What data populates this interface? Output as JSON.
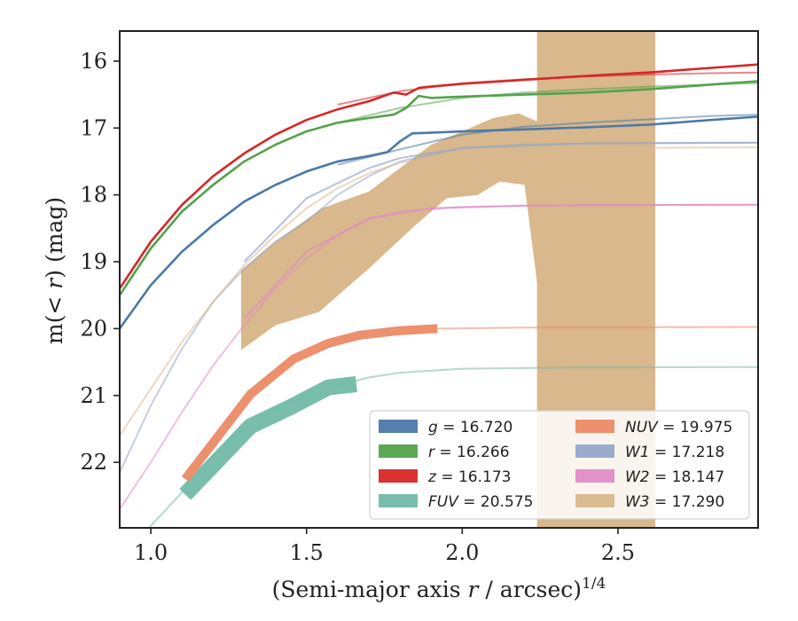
{
  "chart_data": {
    "type": "line",
    "xlabel_main": "(Semi-major axis ",
    "xlabel_var": "r",
    "xlabel_tail": " / arcsec)",
    "xlabel_sup": "1/4",
    "ylabel_main": "m(< ",
    "ylabel_var": "r",
    "ylabel_tail": ") (mag)",
    "xlim": [
      0.9,
      2.95
    ],
    "ylim": [
      22.98,
      15.55
    ],
    "xticks": [
      {
        "v": 1.0,
        "label": "1.0"
      },
      {
        "v": 1.5,
        "label": "1.5"
      },
      {
        "v": 2.0,
        "label": "2.0"
      },
      {
        "v": 2.5,
        "label": "2.5"
      }
    ],
    "yticks": [
      {
        "v": 16,
        "label": "16"
      },
      {
        "v": 17,
        "label": "17"
      },
      {
        "v": 18,
        "label": "18"
      },
      {
        "v": 19,
        "label": "19"
      },
      {
        "v": 20,
        "label": "20"
      },
      {
        "v": 21,
        "label": "21"
      },
      {
        "v": 22,
        "label": "22"
      }
    ],
    "colors": {
      "g": "#4c78a8",
      "r": "#54a24b",
      "z": "#d62728",
      "FUV": "#72bba8",
      "NUV": "#eb8a66",
      "W1": "#97a6c8",
      "W2": "#e08cc5",
      "W3": "#d8b88c"
    },
    "series": [
      {
        "name": "g",
        "legend_var": "g",
        "legend_val": "16.720",
        "color": "#4c78a8",
        "data": [
          [
            0.9,
            20.0
          ],
          [
            1.0,
            19.35
          ],
          [
            1.1,
            18.85
          ],
          [
            1.2,
            18.45
          ],
          [
            1.3,
            18.1
          ],
          [
            1.4,
            17.85
          ],
          [
            1.5,
            17.65
          ],
          [
            1.6,
            17.5
          ],
          [
            1.7,
            17.42
          ],
          [
            1.76,
            17.36
          ],
          [
            1.8,
            17.2
          ],
          [
            1.84,
            17.08
          ],
          [
            1.9,
            17.07
          ],
          [
            2.0,
            17.05
          ],
          [
            2.2,
            17.02
          ],
          [
            2.4,
            16.99
          ],
          [
            2.6,
            16.95
          ],
          [
            2.8,
            16.88
          ],
          [
            2.95,
            16.83
          ]
        ],
        "model": [
          [
            1.6,
            17.55
          ],
          [
            1.8,
            17.32
          ],
          [
            2.0,
            17.1
          ],
          [
            2.2,
            16.98
          ],
          [
            2.4,
            16.92
          ],
          [
            2.6,
            16.87
          ],
          [
            2.8,
            16.82
          ],
          [
            2.95,
            16.8
          ]
        ]
      },
      {
        "name": "r",
        "legend_var": "r",
        "legend_val": "16.266",
        "color": "#54a24b",
        "data": [
          [
            0.9,
            19.5
          ],
          [
            1.0,
            18.8
          ],
          [
            1.1,
            18.25
          ],
          [
            1.2,
            17.85
          ],
          [
            1.3,
            17.5
          ],
          [
            1.4,
            17.25
          ],
          [
            1.5,
            17.05
          ],
          [
            1.6,
            16.92
          ],
          [
            1.7,
            16.85
          ],
          [
            1.78,
            16.8
          ],
          [
            1.82,
            16.7
          ],
          [
            1.86,
            16.52
          ],
          [
            1.9,
            16.55
          ],
          [
            2.0,
            16.53
          ],
          [
            2.2,
            16.5
          ],
          [
            2.4,
            16.47
          ],
          [
            2.6,
            16.42
          ],
          [
            2.8,
            16.35
          ],
          [
            2.95,
            16.3
          ]
        ],
        "model": [
          [
            1.6,
            16.92
          ],
          [
            1.8,
            16.7
          ],
          [
            2.0,
            16.55
          ],
          [
            2.2,
            16.47
          ],
          [
            2.4,
            16.42
          ],
          [
            2.6,
            16.38
          ],
          [
            2.8,
            16.35
          ],
          [
            2.95,
            16.33
          ]
        ]
      },
      {
        "name": "z",
        "legend_var": "z",
        "legend_val": "16.173",
        "color": "#d62728",
        "data": [
          [
            0.9,
            19.4
          ],
          [
            1.0,
            18.7
          ],
          [
            1.1,
            18.15
          ],
          [
            1.2,
            17.72
          ],
          [
            1.3,
            17.38
          ],
          [
            1.4,
            17.1
          ],
          [
            1.5,
            16.88
          ],
          [
            1.6,
            16.72
          ],
          [
            1.7,
            16.6
          ],
          [
            1.78,
            16.47
          ],
          [
            1.82,
            16.5
          ],
          [
            1.86,
            16.4
          ],
          [
            1.9,
            16.38
          ],
          [
            2.0,
            16.34
          ],
          [
            2.2,
            16.28
          ],
          [
            2.4,
            16.22
          ],
          [
            2.6,
            16.17
          ],
          [
            2.8,
            16.1
          ],
          [
            2.95,
            16.05
          ]
        ],
        "model": [
          [
            1.6,
            16.65
          ],
          [
            1.8,
            16.45
          ],
          [
            2.0,
            16.33
          ],
          [
            2.2,
            16.27
          ],
          [
            2.4,
            16.23
          ],
          [
            2.6,
            16.2
          ],
          [
            2.8,
            16.18
          ],
          [
            2.95,
            16.17
          ]
        ]
      },
      {
        "name": "FUV",
        "legend_var": "FUV",
        "legend_val": "20.575",
        "color": "#72bba8",
        "data": [
          [
            1.11,
            22.48
          ],
          [
            1.32,
            21.46
          ],
          [
            1.45,
            21.17
          ],
          [
            1.57,
            20.88
          ],
          [
            1.66,
            20.83
          ]
        ],
        "data_width": 18,
        "model": [
          [
            0.99,
            23.0
          ],
          [
            1.1,
            22.45
          ],
          [
            1.2,
            21.9
          ],
          [
            1.3,
            21.5
          ],
          [
            1.4,
            21.2
          ],
          [
            1.5,
            21.0
          ],
          [
            1.6,
            20.85
          ],
          [
            1.7,
            20.73
          ],
          [
            1.8,
            20.66
          ],
          [
            2.0,
            20.6
          ],
          [
            2.4,
            20.58
          ],
          [
            2.95,
            20.575
          ]
        ]
      },
      {
        "name": "NUV",
        "legend_var": "NUV",
        "legend_val": "19.975",
        "color": "#eb8a66",
        "data": [
          [
            1.11,
            22.25
          ],
          [
            1.32,
            20.98
          ],
          [
            1.46,
            20.45
          ],
          [
            1.57,
            20.22
          ],
          [
            1.67,
            20.1
          ],
          [
            1.8,
            20.03
          ],
          [
            1.92,
            20.0
          ]
        ],
        "data_width": 10,
        "model": [
          [
            1.92,
            20.0
          ],
          [
            2.2,
            19.985
          ],
          [
            2.95,
            19.975
          ]
        ]
      },
      {
        "name": "W1",
        "legend_var": "W1",
        "legend_val": "17.218",
        "color": "#97a6c8",
        "data": [
          [
            1.3,
            19.0
          ],
          [
            1.5,
            18.05
          ],
          [
            1.7,
            17.6
          ],
          [
            1.8,
            17.45
          ],
          [
            2.0,
            17.3
          ],
          [
            2.2,
            17.25
          ],
          [
            2.4,
            17.23
          ],
          [
            2.95,
            17.22
          ]
        ],
        "model": [
          [
            0.9,
            22.15
          ],
          [
            1.0,
            21.15
          ],
          [
            1.1,
            20.3
          ],
          [
            1.2,
            19.6
          ],
          [
            1.3,
            19.1
          ],
          [
            1.4,
            18.7
          ],
          [
            1.5,
            18.4
          ],
          [
            1.6,
            18.0
          ],
          [
            1.7,
            17.72
          ],
          [
            1.8,
            17.5
          ],
          [
            2.0,
            17.3
          ],
          [
            2.4,
            17.23
          ],
          [
            2.95,
            17.218
          ]
        ]
      },
      {
        "name": "W2",
        "legend_var": "W2",
        "legend_val": "18.147",
        "color": "#e08cc5",
        "data": [
          [
            1.3,
            19.85
          ],
          [
            1.5,
            18.85
          ],
          [
            1.7,
            18.35
          ],
          [
            1.9,
            18.2
          ],
          [
            2.2,
            18.16
          ],
          [
            2.95,
            18.147
          ]
        ],
        "model": [
          [
            0.9,
            22.7
          ],
          [
            1.0,
            22.0
          ],
          [
            1.1,
            21.25
          ],
          [
            1.2,
            20.55
          ],
          [
            1.3,
            19.95
          ],
          [
            1.4,
            19.4
          ],
          [
            1.5,
            18.95
          ],
          [
            1.6,
            18.6
          ],
          [
            1.7,
            18.37
          ],
          [
            1.8,
            18.25
          ],
          [
            2.0,
            18.18
          ],
          [
            2.4,
            18.15
          ],
          [
            2.95,
            18.147
          ]
        ]
      },
      {
        "name": "W3",
        "legend_var": "W3",
        "legend_val": "17.290",
        "color": "#d8b88c",
        "band_upper": [
          [
            1.29,
            19.13
          ],
          [
            1.4,
            18.7
          ],
          [
            1.55,
            18.2
          ],
          [
            1.7,
            17.95
          ],
          [
            1.9,
            17.25
          ],
          [
            2.1,
            16.85
          ],
          [
            2.18,
            16.78
          ],
          [
            2.24,
            16.9
          ],
          [
            2.3,
            17.25
          ],
          [
            2.5,
            17.28
          ],
          [
            2.6,
            17.29
          ]
        ],
        "band_lower": [
          [
            1.29,
            20.32
          ],
          [
            1.4,
            19.95
          ],
          [
            1.54,
            19.75
          ],
          [
            1.7,
            19.1
          ],
          [
            1.85,
            18.45
          ],
          [
            1.95,
            18.05
          ],
          [
            2.05,
            18.0
          ],
          [
            2.12,
            17.8
          ],
          [
            2.2,
            17.85
          ],
          [
            2.24,
            19.3
          ],
          [
            2.6,
            19.2
          ]
        ],
        "vband": [
          2.24,
          2.62
        ],
        "model": [
          [
            0.9,
            21.6
          ],
          [
            1.0,
            20.9
          ],
          [
            1.1,
            20.2
          ],
          [
            1.2,
            19.6
          ],
          [
            1.3,
            19.05
          ],
          [
            1.4,
            18.6
          ],
          [
            1.5,
            18.2
          ],
          [
            1.6,
            17.9
          ],
          [
            1.7,
            17.68
          ],
          [
            1.8,
            17.52
          ],
          [
            2.0,
            17.38
          ],
          [
            2.4,
            17.3
          ],
          [
            2.95,
            17.29
          ]
        ]
      }
    ],
    "legend_position": "lower-right",
    "legend_left_col": [
      "g",
      "r",
      "z",
      "FUV"
    ],
    "legend_right_col": [
      "NUV",
      "W1",
      "W2",
      "W3"
    ]
  }
}
